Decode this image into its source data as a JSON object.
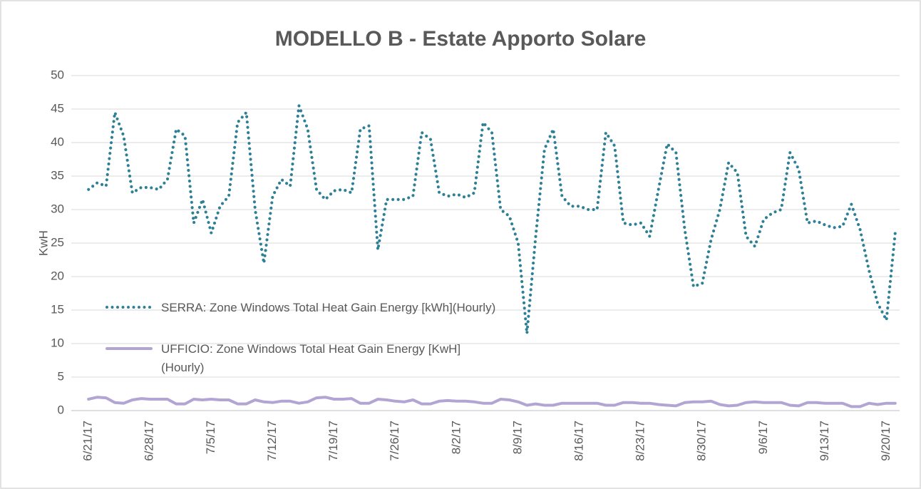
{
  "chart_data": {
    "type": "line",
    "title": "MODELLO B - Estate Apporto Solare",
    "y_label": "KwH",
    "categories": [
      "6/21/17",
      null,
      null,
      null,
      null,
      null,
      null,
      "6/28/17",
      null,
      null,
      null,
      null,
      null,
      null,
      "7/5/17",
      null,
      null,
      null,
      null,
      null,
      null,
      "7/12/17",
      null,
      null,
      null,
      null,
      null,
      null,
      "7/19/17",
      null,
      null,
      null,
      null,
      null,
      null,
      "7/26/17",
      null,
      null,
      null,
      null,
      null,
      null,
      "8/2/17",
      null,
      null,
      null,
      null,
      null,
      null,
      "8/9/17",
      null,
      null,
      null,
      null,
      null,
      null,
      "8/16/17",
      null,
      null,
      null,
      null,
      null,
      null,
      "8/23/17",
      null,
      null,
      null,
      null,
      null,
      null,
      "8/30/17",
      null,
      null,
      null,
      null,
      null,
      null,
      "9/6/17",
      null,
      null,
      null,
      null,
      null,
      null,
      "9/13/17",
      null,
      null,
      null,
      null,
      null,
      null,
      "9/20/17",
      null
    ],
    "series": [
      {
        "name": "SERRA: Zone Windows Total Heat Gain Energy [kWh](Hourly)",
        "color": "#2e8097",
        "style": "dotted",
        "values": [
          33,
          34,
          33.5,
          44.5,
          41,
          32.5,
          33.3,
          33.3,
          33,
          34.5,
          42,
          41,
          28,
          31.5,
          26.5,
          30.5,
          32,
          43,
          44.5,
          30,
          22,
          32,
          34.5,
          33.5,
          45.5,
          42,
          33,
          31.5,
          32.8,
          33,
          32.5,
          42,
          42.5,
          24,
          31.5,
          31.5,
          31.5,
          32,
          41.5,
          40.5,
          32.5,
          32,
          32.3,
          31.8,
          32.5,
          43,
          41.5,
          30,
          29,
          25,
          11.5,
          26,
          39,
          42,
          32,
          30.5,
          30.5,
          30,
          30,
          41.5,
          39.5,
          28,
          27.7,
          28,
          26,
          33,
          39.8,
          38.5,
          27,
          18.5,
          19,
          25.5,
          30,
          37,
          35.5,
          26,
          24.5,
          28.5,
          29.5,
          30,
          38.5,
          36,
          28,
          28.3,
          27.7,
          27.3,
          27.5,
          30.8,
          27,
          21,
          16,
          13.5,
          26.5
        ]
      },
      {
        "name": "UFFICIO: Zone Windows Total Heat Gain Energy [KwH](Hourly)",
        "color": "#b3a5d3",
        "style": "solid",
        "values": [
          1.7,
          2,
          1.9,
          1.2,
          1.1,
          1.6,
          1.8,
          1.7,
          1.7,
          1.7,
          1,
          1,
          1.7,
          1.6,
          1.7,
          1.6,
          1.6,
          1,
          1,
          1.6,
          1.3,
          1.2,
          1.4,
          1.4,
          1.1,
          1.3,
          1.9,
          2,
          1.7,
          1.7,
          1.8,
          1.1,
          1.1,
          1.7,
          1.6,
          1.4,
          1.3,
          1.6,
          1,
          1,
          1.4,
          1.5,
          1.4,
          1.4,
          1.3,
          1.1,
          1.1,
          1.7,
          1.6,
          1.3,
          0.8,
          1,
          0.8,
          0.8,
          1.1,
          1.1,
          1.1,
          1.1,
          1.1,
          0.8,
          0.8,
          1.2,
          1.2,
          1.1,
          1.1,
          0.9,
          0.8,
          0.7,
          1.2,
          1.3,
          1.3,
          1.4,
          0.9,
          0.7,
          0.8,
          1.2,
          1.3,
          1.2,
          1.2,
          1.2,
          0.8,
          0.7,
          1.2,
          1.2,
          1.1,
          1.1,
          1.1,
          0.6,
          0.6,
          1.1,
          0.9,
          1.1,
          1.1
        ]
      }
    ],
    "ylim": [
      0,
      50
    ],
    "yticks": [
      0,
      5,
      10,
      15,
      20,
      25,
      30,
      35,
      40,
      45,
      50
    ],
    "grid": true,
    "legend": "left"
  }
}
